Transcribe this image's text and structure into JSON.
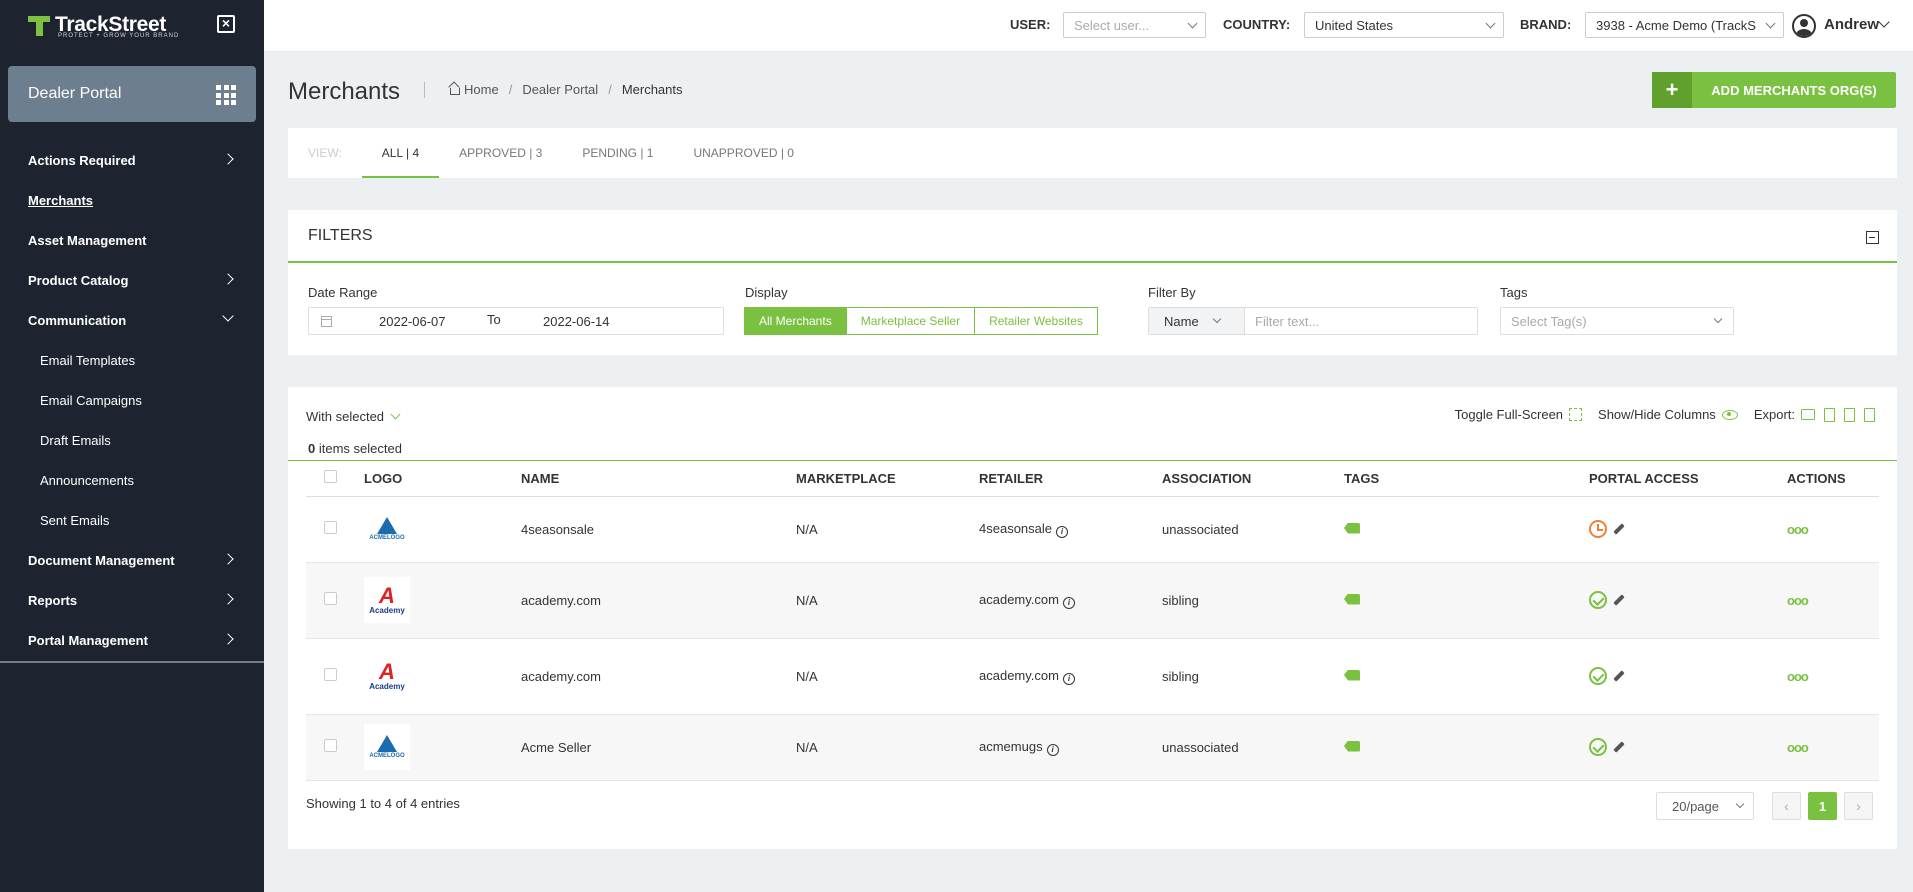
{
  "app": {
    "name": "TrackStreet",
    "tagline": "PROTECT + GROW YOUR BRAND"
  },
  "sidebar": {
    "portal_label": "Dealer Portal",
    "items": [
      {
        "label": "Actions Required"
      },
      {
        "label": "Merchants"
      },
      {
        "label": "Asset Management"
      },
      {
        "label": "Product Catalog"
      },
      {
        "label": "Communication"
      },
      {
        "label": "Email Templates"
      },
      {
        "label": "Email Campaigns"
      },
      {
        "label": "Draft Emails"
      },
      {
        "label": "Announcements"
      },
      {
        "label": "Sent Emails"
      },
      {
        "label": "Document Management"
      },
      {
        "label": "Reports"
      },
      {
        "label": "Portal Management"
      }
    ]
  },
  "topbar": {
    "user_label": "USER:",
    "user_placeholder": "Select user...",
    "country_label": "COUNTRY:",
    "country_value": "United States",
    "brand_label": "BRAND:",
    "brand_value": "3938 - Acme Demo (TrackS",
    "username": "Andrew"
  },
  "page": {
    "title": "Merchants",
    "breadcrumb": [
      "Home",
      "Dealer Portal",
      "Merchants"
    ],
    "add_button": "ADD MERCHANTS ORG(S)"
  },
  "view_tabs": {
    "view_label": "VIEW:",
    "tabs": [
      {
        "label": "ALL | 4"
      },
      {
        "label": "APPROVED | 3"
      },
      {
        "label": "PENDING | 1"
      },
      {
        "label": "UNAPPROVED | 0"
      }
    ]
  },
  "filters": {
    "title": "FILTERS",
    "date_range_label": "Date Range",
    "date_from": "2022-06-07",
    "date_to_label": "To",
    "date_to": "2022-06-14",
    "display_label": "Display",
    "display_options": [
      "All Merchants",
      "Marketplace Seller",
      "Retailer Websites"
    ],
    "filter_by_label": "Filter By",
    "filter_by_field": "Name",
    "filter_text_placeholder": "Filter text...",
    "tags_label": "Tags",
    "tags_placeholder": "Select Tag(s)"
  },
  "table_tools": {
    "with_selected": "With selected",
    "selected_count": "0",
    "selected_suffix": " items selected",
    "toggle_fullscreen": "Toggle Full-Screen",
    "show_hide_columns": "Show/Hide Columns",
    "export_label": "Export:"
  },
  "table": {
    "columns": [
      "LOGO",
      "NAME",
      "MARKETPLACE",
      "RETAILER",
      "ASSOCIATION",
      "TAGS",
      "PORTAL ACCESS",
      "ACTIONS"
    ],
    "rows": [
      {
        "logo": "acme",
        "logo_text": "ACMELOGO",
        "name": "4seasonsale",
        "marketplace": "N/A",
        "retailer": "4seasonsale",
        "association": "unassociated",
        "portal": "pending"
      },
      {
        "logo": "academy",
        "logo_text": "Academy",
        "name": "academy.com",
        "marketplace": "N/A",
        "retailer": "academy.com",
        "association": "sibling",
        "portal": "approved"
      },
      {
        "logo": "academy",
        "logo_text": "Academy",
        "name": "academy.com",
        "marketplace": "N/A",
        "retailer": "academy.com",
        "association": "sibling",
        "portal": "approved"
      },
      {
        "logo": "acme",
        "logo_text": "ACMELOGO",
        "name": "Acme Seller",
        "marketplace": "N/A",
        "retailer": "acmemugs",
        "association": "unassociated",
        "portal": "approved"
      }
    ]
  },
  "footer": {
    "showing": "Showing 1 to 4 of 4 entries",
    "per_page": "20/page",
    "current_page": "1"
  },
  "colors": {
    "accent": "#7ac142",
    "sidebar": "#1e242f",
    "pending": "#f08033"
  }
}
